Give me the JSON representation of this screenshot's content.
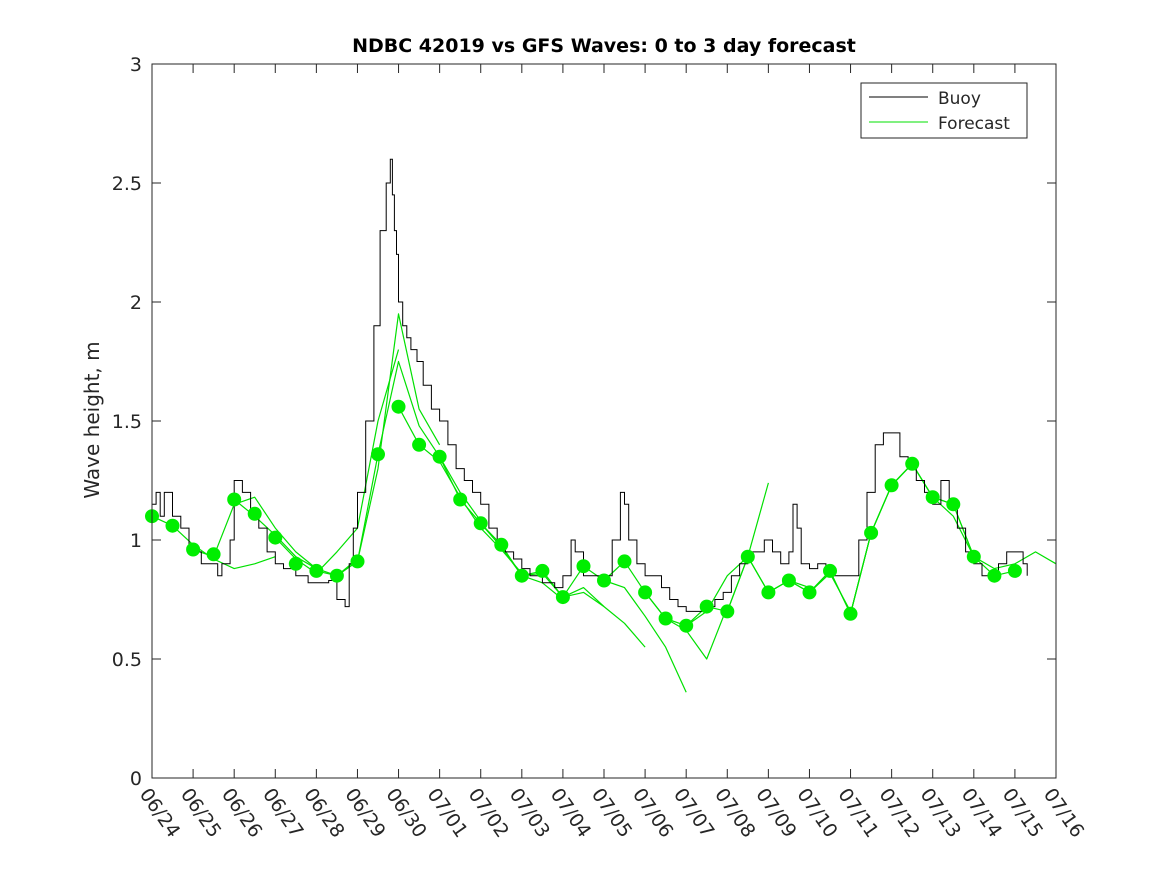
{
  "chart_data": {
    "type": "line",
    "title": "NDBC 42019 vs GFS Waves: 0 to 3 day forecast",
    "ylabel": "Wave height, m",
    "xlabel": "",
    "ylim": [
      0,
      3
    ],
    "yticks": [
      "0",
      "0.5",
      "1",
      "1.5",
      "2",
      "2.5",
      "3"
    ],
    "xlim": [
      0,
      22
    ],
    "xtick_labels": [
      "06/24",
      "06/25",
      "06/26",
      "06/27",
      "06/28",
      "06/29",
      "06/30",
      "07/01",
      "07/02",
      "07/03",
      "07/04",
      "07/05",
      "07/06",
      "07/07",
      "07/08",
      "07/09",
      "07/10",
      "07/11",
      "07/12",
      "07/13",
      "07/14",
      "07/15",
      "07/16"
    ],
    "grid": false,
    "legend": {
      "position": "top-right",
      "entries": [
        "Buoy",
        "Forecast"
      ]
    },
    "colors": {
      "buoy": "#000000",
      "forecast": "#00e000",
      "forecast_marker": "#00ee00",
      "axis": "#262626"
    },
    "series": [
      {
        "name": "Buoy",
        "x": [
          0,
          0.1,
          0.2,
          0.3,
          0.5,
          0.7,
          0.9,
          1.0,
          1.2,
          1.4,
          1.6,
          1.7,
          1.9,
          2.0,
          2.2,
          2.4,
          2.6,
          2.8,
          3.0,
          3.2,
          3.5,
          3.8,
          4.0,
          4.3,
          4.5,
          4.7,
          4.8,
          4.9,
          5.0,
          5.2,
          5.4,
          5.55,
          5.7,
          5.8,
          5.85,
          5.9,
          5.95,
          6.0,
          6.1,
          6.2,
          6.3,
          6.45,
          6.6,
          6.8,
          7.0,
          7.2,
          7.4,
          7.6,
          7.8,
          8.0,
          8.2,
          8.4,
          8.6,
          8.8,
          9.0,
          9.2,
          9.5,
          9.8,
          10.0,
          10.2,
          10.3,
          10.5,
          10.7,
          11.0,
          11.2,
          11.4,
          11.5,
          11.6,
          11.8,
          12.0,
          12.2,
          12.4,
          12.6,
          12.8,
          13.0,
          13.2,
          13.5,
          13.7,
          13.9,
          14.1,
          14.3,
          14.5,
          14.7,
          14.9,
          15.1,
          15.3,
          15.5,
          15.6,
          15.7,
          15.8,
          16.0,
          16.2,
          16.4,
          16.6,
          16.8,
          17.0,
          17.2,
          17.4,
          17.6,
          17.8,
          18.0,
          18.2,
          18.4,
          18.6,
          18.8,
          19.0,
          19.2,
          19.4,
          19.6,
          19.8,
          20.0,
          20.2,
          20.4,
          20.6,
          20.8,
          21.0,
          21.2,
          21.3
        ],
        "values": [
          1.15,
          1.2,
          1.1,
          1.2,
          1.1,
          1.05,
          0.95,
          0.95,
          0.9,
          0.9,
          0.85,
          0.9,
          1.0,
          1.25,
          1.2,
          1.1,
          1.05,
          0.95,
          0.9,
          0.88,
          0.85,
          0.82,
          0.82,
          0.83,
          0.75,
          0.72,
          0.9,
          1.05,
          1.2,
          1.5,
          1.9,
          2.3,
          2.5,
          2.6,
          2.45,
          2.3,
          2.2,
          2.0,
          1.9,
          1.85,
          1.8,
          1.75,
          1.65,
          1.55,
          1.5,
          1.4,
          1.3,
          1.25,
          1.2,
          1.15,
          1.05,
          1.0,
          0.95,
          0.92,
          0.88,
          0.85,
          0.82,
          0.8,
          0.85,
          1.0,
          0.95,
          0.85,
          0.85,
          0.85,
          1.0,
          1.2,
          1.15,
          1.0,
          0.9,
          0.85,
          0.85,
          0.8,
          0.75,
          0.72,
          0.7,
          0.7,
          0.72,
          0.75,
          0.78,
          0.85,
          0.9,
          0.95,
          0.95,
          1.0,
          0.95,
          0.9,
          0.95,
          1.15,
          1.05,
          0.9,
          0.88,
          0.9,
          0.88,
          0.85,
          0.85,
          0.85,
          1.0,
          1.2,
          1.4,
          1.45,
          1.45,
          1.35,
          1.3,
          1.25,
          1.2,
          1.15,
          1.25,
          1.15,
          1.05,
          0.95,
          0.9,
          0.85,
          0.85,
          0.9,
          0.95,
          0.95,
          0.9,
          0.85
        ]
      },
      {
        "name": "Forecast",
        "runs": [
          {
            "x": [
              0,
              0.5,
              1,
              1.5,
              2,
              2.5,
              3
            ],
            "values": [
              1.1,
              1.06,
              0.98,
              0.92,
              0.88,
              0.9,
              0.93
            ]
          },
          {
            "x": [
              1,
              1.5,
              2,
              2.5,
              3,
              3.5,
              4
            ],
            "values": [
              0.96,
              0.93,
              1.15,
              1.18,
              1.05,
              0.95,
              0.88
            ]
          },
          {
            "x": [
              2,
              2.5,
              3,
              3.5,
              4,
              4.5,
              5
            ],
            "values": [
              1.17,
              1.1,
              1.02,
              0.93,
              0.88,
              0.85,
              0.92
            ]
          },
          {
            "x": [
              3,
              3.5,
              4,
              4.5,
              5,
              5.5,
              6
            ],
            "values": [
              1.01,
              0.92,
              0.86,
              0.95,
              1.05,
              1.5,
              1.8
            ]
          },
          {
            "x": [
              4,
              4.5,
              5,
              5.5,
              6,
              6.5,
              7
            ],
            "values": [
              0.87,
              0.85,
              0.91,
              1.3,
              1.95,
              1.55,
              1.4
            ]
          },
          {
            "x": [
              5,
              5.5,
              6,
              6.5,
              7,
              7.5,
              8
            ],
            "values": [
              0.91,
              1.36,
              1.75,
              1.48,
              1.35,
              1.2,
              1.08
            ]
          },
          {
            "x": [
              6,
              6.5,
              7,
              7.5,
              8,
              8.5,
              9
            ],
            "values": [
              1.56,
              1.4,
              1.33,
              1.18,
              1.05,
              0.96,
              0.86
            ]
          },
          {
            "x": [
              7,
              7.5,
              8,
              8.5,
              9,
              9.5,
              10
            ],
            "values": [
              1.35,
              1.17,
              1.07,
              0.97,
              0.85,
              0.82,
              0.75
            ]
          },
          {
            "x": [
              8,
              8.5,
              9,
              9.5,
              10,
              10.5,
              11
            ],
            "values": [
              1.07,
              0.98,
              0.85,
              0.86,
              0.76,
              0.8,
              0.72
            ]
          },
          {
            "x": [
              9,
              9.5,
              10,
              10.5,
              11,
              11.5,
              12
            ],
            "values": [
              0.85,
              0.87,
              0.76,
              0.78,
              0.72,
              0.65,
              0.55
            ]
          },
          {
            "x": [
              10,
              10.5,
              11,
              11.5,
              12,
              12.5,
              13
            ],
            "values": [
              0.76,
              0.89,
              0.83,
              0.8,
              0.68,
              0.55,
              0.36
            ]
          },
          {
            "x": [
              11,
              11.5,
              12,
              12.5,
              13,
              13.5,
              14
            ],
            "values": [
              0.83,
              0.91,
              0.78,
              0.67,
              0.62,
              0.5,
              0.72
            ]
          },
          {
            "x": [
              12,
              12.5,
              13,
              13.5,
              14,
              14.5,
              15
            ],
            "values": [
              0.78,
              0.67,
              0.64,
              0.7,
              0.85,
              0.93,
              1.24
            ]
          },
          {
            "x": [
              13,
              13.5,
              14,
              14.5,
              15,
              15.5,
              16
            ],
            "values": [
              0.64,
              0.72,
              0.7,
              0.93,
              0.78,
              0.83,
              0.8
            ]
          },
          {
            "x": [
              14,
              14.5,
              15,
              15.5,
              16,
              16.5,
              17
            ],
            "values": [
              0.7,
              0.93,
              0.78,
              0.83,
              0.78,
              0.86,
              0.7
            ]
          },
          {
            "x": [
              15,
              15.5,
              16,
              16.5,
              17,
              17.5,
              18
            ],
            "values": [
              0.78,
              0.83,
              0.78,
              0.87,
              0.69,
              1.03,
              1.23
            ]
          },
          {
            "x": [
              16,
              16.5,
              17,
              17.5,
              18,
              18.5,
              19
            ],
            "values": [
              0.78,
              0.87,
              0.69,
              1.03,
              1.23,
              1.32,
              1.18
            ]
          },
          {
            "x": [
              17,
              17.5,
              18,
              18.5,
              19,
              19.5,
              20
            ],
            "values": [
              0.69,
              1.03,
              1.23,
              1.32,
              1.18,
              1.15,
              0.93
            ]
          },
          {
            "x": [
              18,
              18.5,
              19,
              19.5,
              20,
              20.5,
              21
            ],
            "values": [
              1.23,
              1.32,
              1.18,
              1.15,
              0.93,
              0.85,
              0.87
            ]
          },
          {
            "x": [
              19,
              19.5,
              20,
              20.5,
              21,
              21.5,
              22
            ],
            "values": [
              1.18,
              1.1,
              0.93,
              0.88,
              0.9,
              0.95,
              0.9
            ]
          }
        ],
        "markers": {
          "x": [
            0,
            0.5,
            1,
            1.5,
            2,
            2.5,
            3,
            3.5,
            4,
            4.5,
            5,
            5.5,
            6,
            6.5,
            7,
            7.5,
            8,
            8.5,
            9,
            9.5,
            10,
            10.5,
            11,
            11.5,
            12,
            12.5,
            13,
            13.5,
            14,
            14.5,
            15,
            15.5,
            16,
            16.5,
            17,
            17.5,
            18,
            18.5,
            19,
            19.5,
            20,
            20.5,
            21
          ],
          "values": [
            1.1,
            1.06,
            0.96,
            0.94,
            1.17,
            1.11,
            1.01,
            0.9,
            0.87,
            0.85,
            0.91,
            1.36,
            1.56,
            1.4,
            1.35,
            1.17,
            1.07,
            0.98,
            0.85,
            0.87,
            0.76,
            0.89,
            0.83,
            0.91,
            0.78,
            0.67,
            0.64,
            0.72,
            0.7,
            0.93,
            0.78,
            0.83,
            0.78,
            0.87,
            0.69,
            1.03,
            1.23,
            1.32,
            1.18,
            1.15,
            0.93,
            0.85,
            0.87
          ]
        }
      }
    ]
  }
}
